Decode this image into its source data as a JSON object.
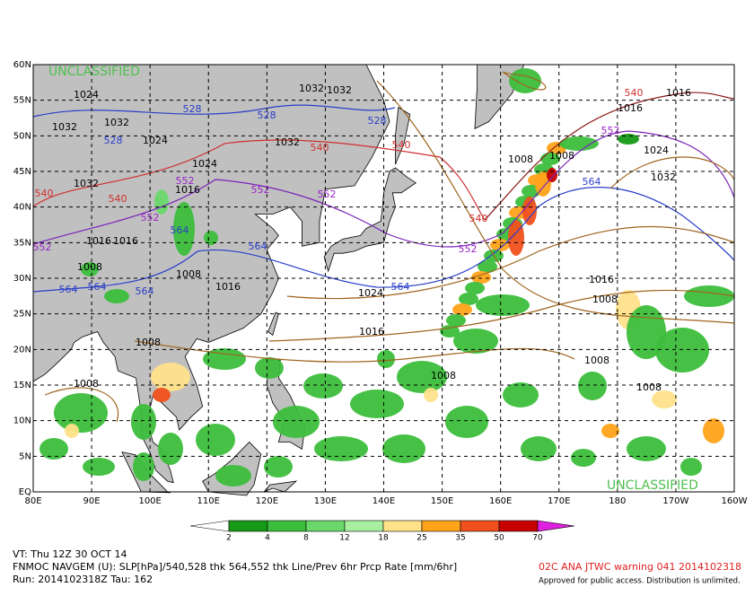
{
  "map": {
    "classification_top": "UNCLASSIFIED",
    "classification_bottom": "UNCLASSIFIED",
    "lat_labels": [
      "60N",
      "55N",
      "50N",
      "45N",
      "40N",
      "35N",
      "30N",
      "25N",
      "20N",
      "15N",
      "10N",
      "5N",
      "EQ"
    ],
    "lon_labels": [
      "80E",
      "90E",
      "100E",
      "110E",
      "120E",
      "130E",
      "140E",
      "150E",
      "160E",
      "170E",
      "180",
      "170W",
      "160W"
    ],
    "isobar_labels": [
      1024,
      1032,
      1032,
      1024,
      1024,
      1032,
      1032,
      1032,
      1032,
      1016,
      1016,
      1016,
      1008,
      1008,
      1016,
      1024,
      1016,
      1008,
      1008,
      1008,
      1008,
      1008,
      1008,
      1008,
      1016,
      1016,
      1024,
      1032,
      1016,
      1008
    ],
    "isobar_color": "#8b5a1e",
    "thickness_labels": [
      540,
      540,
      540,
      540,
      540,
      540,
      528,
      528,
      528,
      528,
      552,
      552,
      552,
      552,
      552,
      552,
      552,
      564,
      564,
      564,
      564,
      564,
      564,
      564
    ],
    "thickness_colors": {
      "528": "#2a3ec8",
      "540": "#d03030",
      "552": "#9a22c8",
      "564": "#2a3ec8"
    }
  },
  "colorbar": {
    "ticks": [
      2,
      4,
      8,
      12,
      18,
      25,
      35,
      50,
      70
    ],
    "colors": [
      "#169a16",
      "#3cbe3c",
      "#6ad86a",
      "#a8f0a0",
      "#ffe28a",
      "#ffa31a",
      "#f0501e",
      "#c80000",
      "#960000",
      "#e020e0"
    ]
  },
  "footer": {
    "valid_time": "VT: Thu 12Z 30 OCT 14",
    "description": "FNMOC NAVGEM (U): SLP[hPa]/540,528 thk 564,552 thk Line/Prev 6hr Prcp Rate [mm/6hr]",
    "run": "Run: 2014102318Z Tau: 162",
    "warning": "02C ANA JTWC warning 041 2014102318",
    "approval": "Approved for public access. Distribution is unlimited."
  }
}
